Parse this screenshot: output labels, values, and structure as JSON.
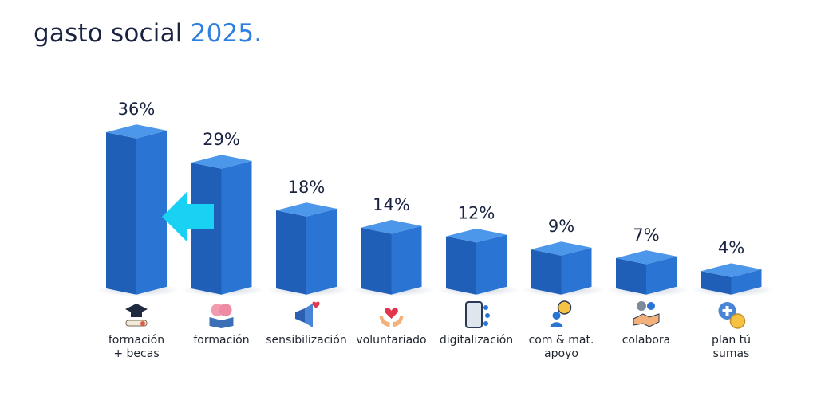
{
  "title": {
    "main": "gasto social",
    "accent": "2025."
  },
  "colors": {
    "bar_front": "#2a74d3",
    "bar_side": "#1f5fb8",
    "bar_top": "#4d97ea",
    "arrow": "#19d1f2",
    "label_text": "#1a2340"
  },
  "chart_data": {
    "type": "bar",
    "categories": [
      [
        "formación",
        "+ becas"
      ],
      [
        "formación"
      ],
      [
        "sensibilización"
      ],
      [
        "voluntariado"
      ],
      [
        "digitalización"
      ],
      [
        "com & mat.",
        "apoyo"
      ],
      [
        "colabora"
      ],
      [
        "plan tú",
        "sumas"
      ]
    ],
    "values": [
      36,
      29,
      18,
      14,
      12,
      9,
      7,
      4
    ],
    "value_labels": [
      "36%",
      "29%",
      "18%",
      "14%",
      "12%",
      "9%",
      "7%",
      "4%"
    ],
    "icons": [
      "graduation-cap-icon",
      "brain-book-icon",
      "megaphone-heart-icon",
      "hands-heart-icon",
      "tablet-network-icon",
      "person-chat-icon",
      "handshake-gears-icon",
      "plus-coin-icon"
    ],
    "annotation": "arrow pointing left at first bar",
    "ylim": [
      0,
      36
    ],
    "grid": false,
    "legend": "none"
  }
}
